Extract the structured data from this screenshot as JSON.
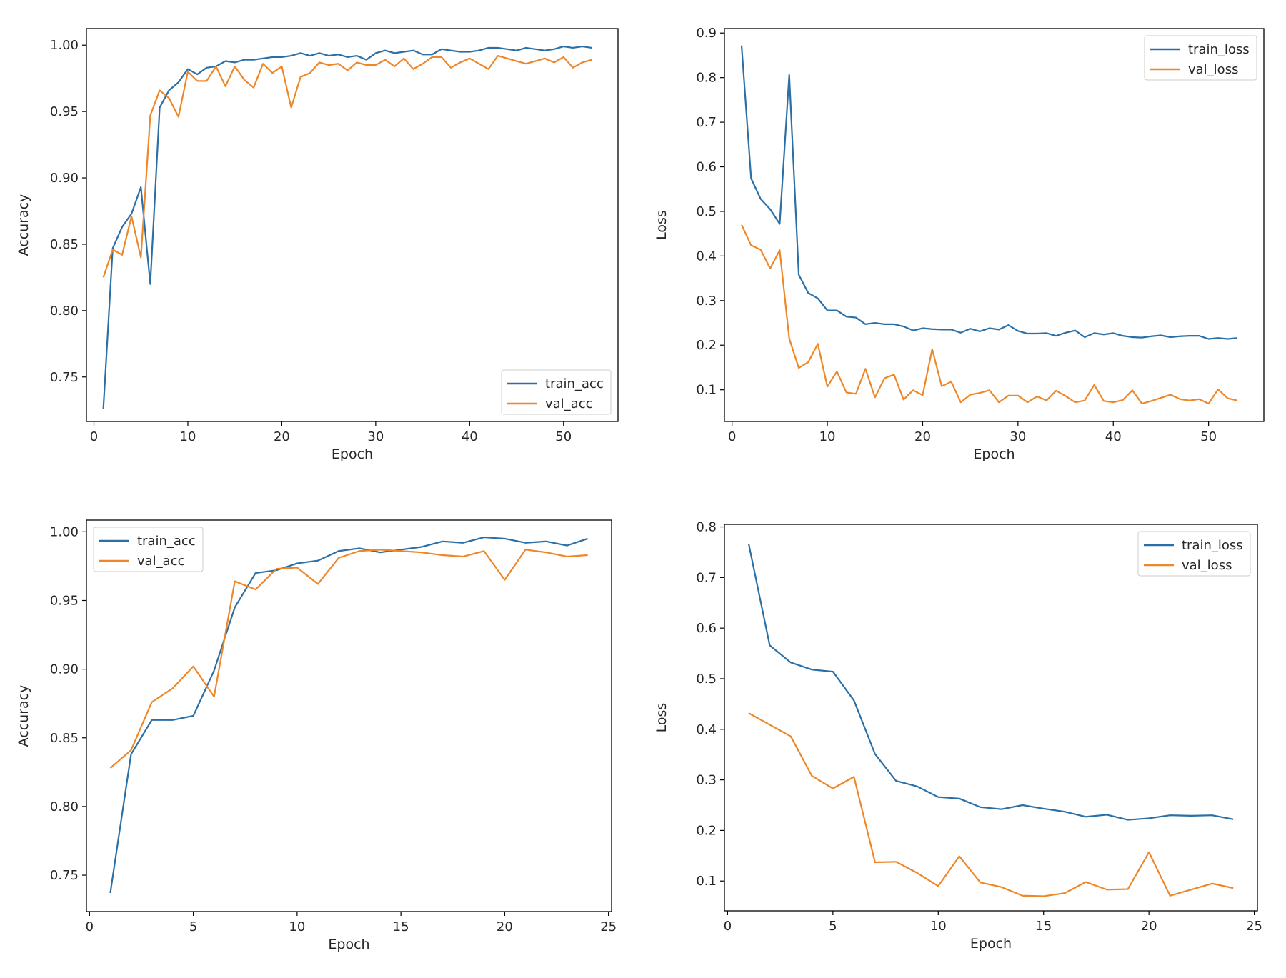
{
  "colors": {
    "train": "#2a6fa6",
    "val": "#ef8628",
    "axis": "#000000"
  },
  "chart_data": [
    {
      "type": "line",
      "xlabel": "Epoch",
      "ylabel": "Accuracy",
      "xlim": [
        -0.8,
        55.8
      ],
      "ylim": [
        0.7165,
        1.0125
      ],
      "xticks": [
        0,
        10,
        20,
        30,
        40,
        50
      ],
      "yticks": [
        0.75,
        0.8,
        0.85,
        0.9,
        0.95,
        1.0
      ],
      "ytick_labels": [
        "0.75",
        "0.80",
        "0.85",
        "0.90",
        "0.95",
        "1.00"
      ],
      "legend": "bottom-right",
      "x": [
        1,
        2,
        3,
        4,
        5,
        6,
        7,
        8,
        9,
        10,
        11,
        12,
        13,
        14,
        15,
        16,
        17,
        18,
        19,
        20,
        21,
        22,
        23,
        24,
        25,
        26,
        27,
        28,
        29,
        30,
        31,
        32,
        33,
        34,
        35,
        36,
        37,
        38,
        39,
        40,
        41,
        42,
        43,
        44,
        45,
        46,
        47,
        48,
        49,
        50,
        51,
        52,
        53
      ],
      "series": [
        {
          "name": "train_acc",
          "color": "train",
          "values": [
            0.726,
            0.847,
            0.863,
            0.873,
            0.893,
            0.82,
            0.953,
            0.966,
            0.972,
            0.982,
            0.978,
            0.983,
            0.984,
            0.988,
            0.987,
            0.989,
            0.989,
            0.99,
            0.991,
            0.991,
            0.992,
            0.994,
            0.992,
            0.994,
            0.992,
            0.993,
            0.991,
            0.992,
            0.989,
            0.994,
            0.996,
            0.994,
            0.995,
            0.996,
            0.993,
            0.993,
            0.997,
            0.996,
            0.995,
            0.995,
            0.996,
            0.998,
            0.998,
            0.997,
            0.996,
            0.998,
            0.997,
            0.996,
            0.997,
            0.999,
            0.998,
            0.999,
            0.998
          ]
        },
        {
          "name": "val_acc",
          "color": "val",
          "values": [
            0.825,
            0.846,
            0.842,
            0.871,
            0.84,
            0.947,
            0.966,
            0.96,
            0.946,
            0.98,
            0.973,
            0.973,
            0.984,
            0.969,
            0.984,
            0.974,
            0.968,
            0.986,
            0.979,
            0.984,
            0.953,
            0.976,
            0.979,
            0.987,
            0.985,
            0.986,
            0.981,
            0.987,
            0.985,
            0.985,
            0.989,
            0.984,
            0.99,
            0.982,
            0.986,
            0.991,
            0.991,
            0.983,
            0.987,
            0.99,
            0.986,
            0.982,
            0.992,
            0.99,
            0.988,
            0.986,
            0.988,
            0.99,
            0.987,
            0.991,
            0.983,
            0.987,
            0.989
          ]
        }
      ]
    },
    {
      "type": "line",
      "xlabel": "Epoch",
      "ylabel": "Loss",
      "xlim": [
        -0.8,
        55.8
      ],
      "ylim": [
        0.029,
        0.91
      ],
      "xticks": [
        0,
        10,
        20,
        30,
        40,
        50
      ],
      "yticks": [
        0.1,
        0.2,
        0.3,
        0.4,
        0.5,
        0.6,
        0.7,
        0.8,
        0.9
      ],
      "ytick_labels": [
        "0.1",
        "0.2",
        "0.3",
        "0.4",
        "0.5",
        "0.6",
        "0.7",
        "0.8",
        "0.9"
      ],
      "legend": "top-right",
      "x": [
        1,
        2,
        3,
        4,
        5,
        6,
        7,
        8,
        9,
        10,
        11,
        12,
        13,
        14,
        15,
        16,
        17,
        18,
        19,
        20,
        21,
        22,
        23,
        24,
        25,
        26,
        27,
        28,
        29,
        30,
        31,
        32,
        33,
        34,
        35,
        36,
        37,
        38,
        39,
        40,
        41,
        42,
        43,
        44,
        45,
        46,
        47,
        48,
        49,
        50,
        51,
        52,
        53
      ],
      "series": [
        {
          "name": "train_loss",
          "color": "train",
          "values": [
            0.872,
            0.574,
            0.528,
            0.505,
            0.472,
            0.806,
            0.358,
            0.317,
            0.305,
            0.278,
            0.278,
            0.264,
            0.262,
            0.247,
            0.25,
            0.247,
            0.247,
            0.242,
            0.233,
            0.238,
            0.236,
            0.235,
            0.235,
            0.228,
            0.237,
            0.231,
            0.238,
            0.235,
            0.245,
            0.232,
            0.226,
            0.226,
            0.227,
            0.221,
            0.228,
            0.233,
            0.218,
            0.227,
            0.224,
            0.227,
            0.221,
            0.218,
            0.217,
            0.22,
            0.222,
            0.218,
            0.22,
            0.221,
            0.221,
            0.214,
            0.216,
            0.214,
            0.216
          ]
        },
        {
          "name": "val_loss",
          "color": "val",
          "values": [
            0.47,
            0.424,
            0.414,
            0.372,
            0.413,
            0.215,
            0.149,
            0.162,
            0.203,
            0.107,
            0.141,
            0.094,
            0.091,
            0.147,
            0.083,
            0.126,
            0.134,
            0.078,
            0.099,
            0.088,
            0.191,
            0.108,
            0.118,
            0.072,
            0.089,
            0.093,
            0.099,
            0.072,
            0.087,
            0.087,
            0.072,
            0.085,
            0.076,
            0.098,
            0.086,
            0.072,
            0.076,
            0.111,
            0.075,
            0.072,
            0.077,
            0.099,
            0.069,
            0.075,
            0.082,
            0.089,
            0.079,
            0.076,
            0.079,
            0.069,
            0.101,
            0.081,
            0.076
          ]
        }
      ]
    },
    {
      "type": "line",
      "xlabel": "Epoch",
      "ylabel": "Accuracy",
      "xlim": [
        -0.15,
        25.15
      ],
      "ylim": [
        0.7235,
        1.0085
      ],
      "xticks": [
        0,
        5,
        10,
        15,
        20,
        25
      ],
      "yticks": [
        0.75,
        0.8,
        0.85,
        0.9,
        0.95,
        1.0
      ],
      "ytick_labels": [
        "0.75",
        "0.80",
        "0.85",
        "0.90",
        "0.95",
        "1.00"
      ],
      "legend": "top-left",
      "x": [
        1,
        2,
        3,
        4,
        5,
        6,
        7,
        8,
        9,
        10,
        11,
        12,
        13,
        14,
        15,
        16,
        17,
        18,
        19,
        20,
        21,
        22,
        23,
        24
      ],
      "series": [
        {
          "name": "train_acc",
          "color": "train",
          "values": [
            0.737,
            0.838,
            0.863,
            0.863,
            0.866,
            0.899,
            0.945,
            0.97,
            0.972,
            0.977,
            0.979,
            0.986,
            0.988,
            0.985,
            0.987,
            0.989,
            0.993,
            0.992,
            0.996,
            0.995,
            0.992,
            0.993,
            0.99,
            0.995
          ]
        },
        {
          "name": "val_acc",
          "color": "val",
          "values": [
            0.828,
            0.841,
            0.876,
            0.886,
            0.902,
            0.88,
            0.964,
            0.958,
            0.973,
            0.974,
            0.962,
            0.981,
            0.986,
            0.987,
            0.986,
            0.985,
            0.983,
            0.982,
            0.986,
            0.965,
            0.987,
            0.985,
            0.982,
            0.983
          ]
        }
      ]
    },
    {
      "type": "line",
      "xlabel": "Epoch",
      "ylabel": "Loss",
      "xlim": [
        -0.15,
        25.15
      ],
      "ylim": [
        0.041,
        0.805
      ],
      "xticks": [
        0,
        5,
        10,
        15,
        20,
        25
      ],
      "yticks": [
        0.1,
        0.2,
        0.3,
        0.4,
        0.5,
        0.6,
        0.7,
        0.8
      ],
      "ytick_labels": [
        "0.1",
        "0.2",
        "0.3",
        "0.4",
        "0.5",
        "0.6",
        "0.7",
        "0.8"
      ],
      "legend": "top-right",
      "x": [
        1,
        2,
        3,
        4,
        5,
        6,
        7,
        8,
        9,
        10,
        11,
        12,
        13,
        14,
        15,
        16,
        17,
        18,
        19,
        20,
        21,
        22,
        23,
        24
      ],
      "series": [
        {
          "name": "train_loss",
          "color": "train",
          "values": [
            0.767,
            0.566,
            0.532,
            0.518,
            0.514,
            0.457,
            0.351,
            0.298,
            0.287,
            0.266,
            0.263,
            0.246,
            0.242,
            0.25,
            0.243,
            0.237,
            0.227,
            0.231,
            0.221,
            0.224,
            0.23,
            0.229,
            0.23,
            0.222
          ]
        },
        {
          "name": "val_loss",
          "color": "val",
          "values": [
            0.432,
            0.409,
            0.386,
            0.308,
            0.283,
            0.306,
            0.137,
            0.138,
            0.116,
            0.09,
            0.149,
            0.097,
            0.088,
            0.071,
            0.07,
            0.076,
            0.098,
            0.083,
            0.084,
            0.157,
            0.071,
            0.083,
            0.095,
            0.086
          ]
        }
      ]
    }
  ]
}
